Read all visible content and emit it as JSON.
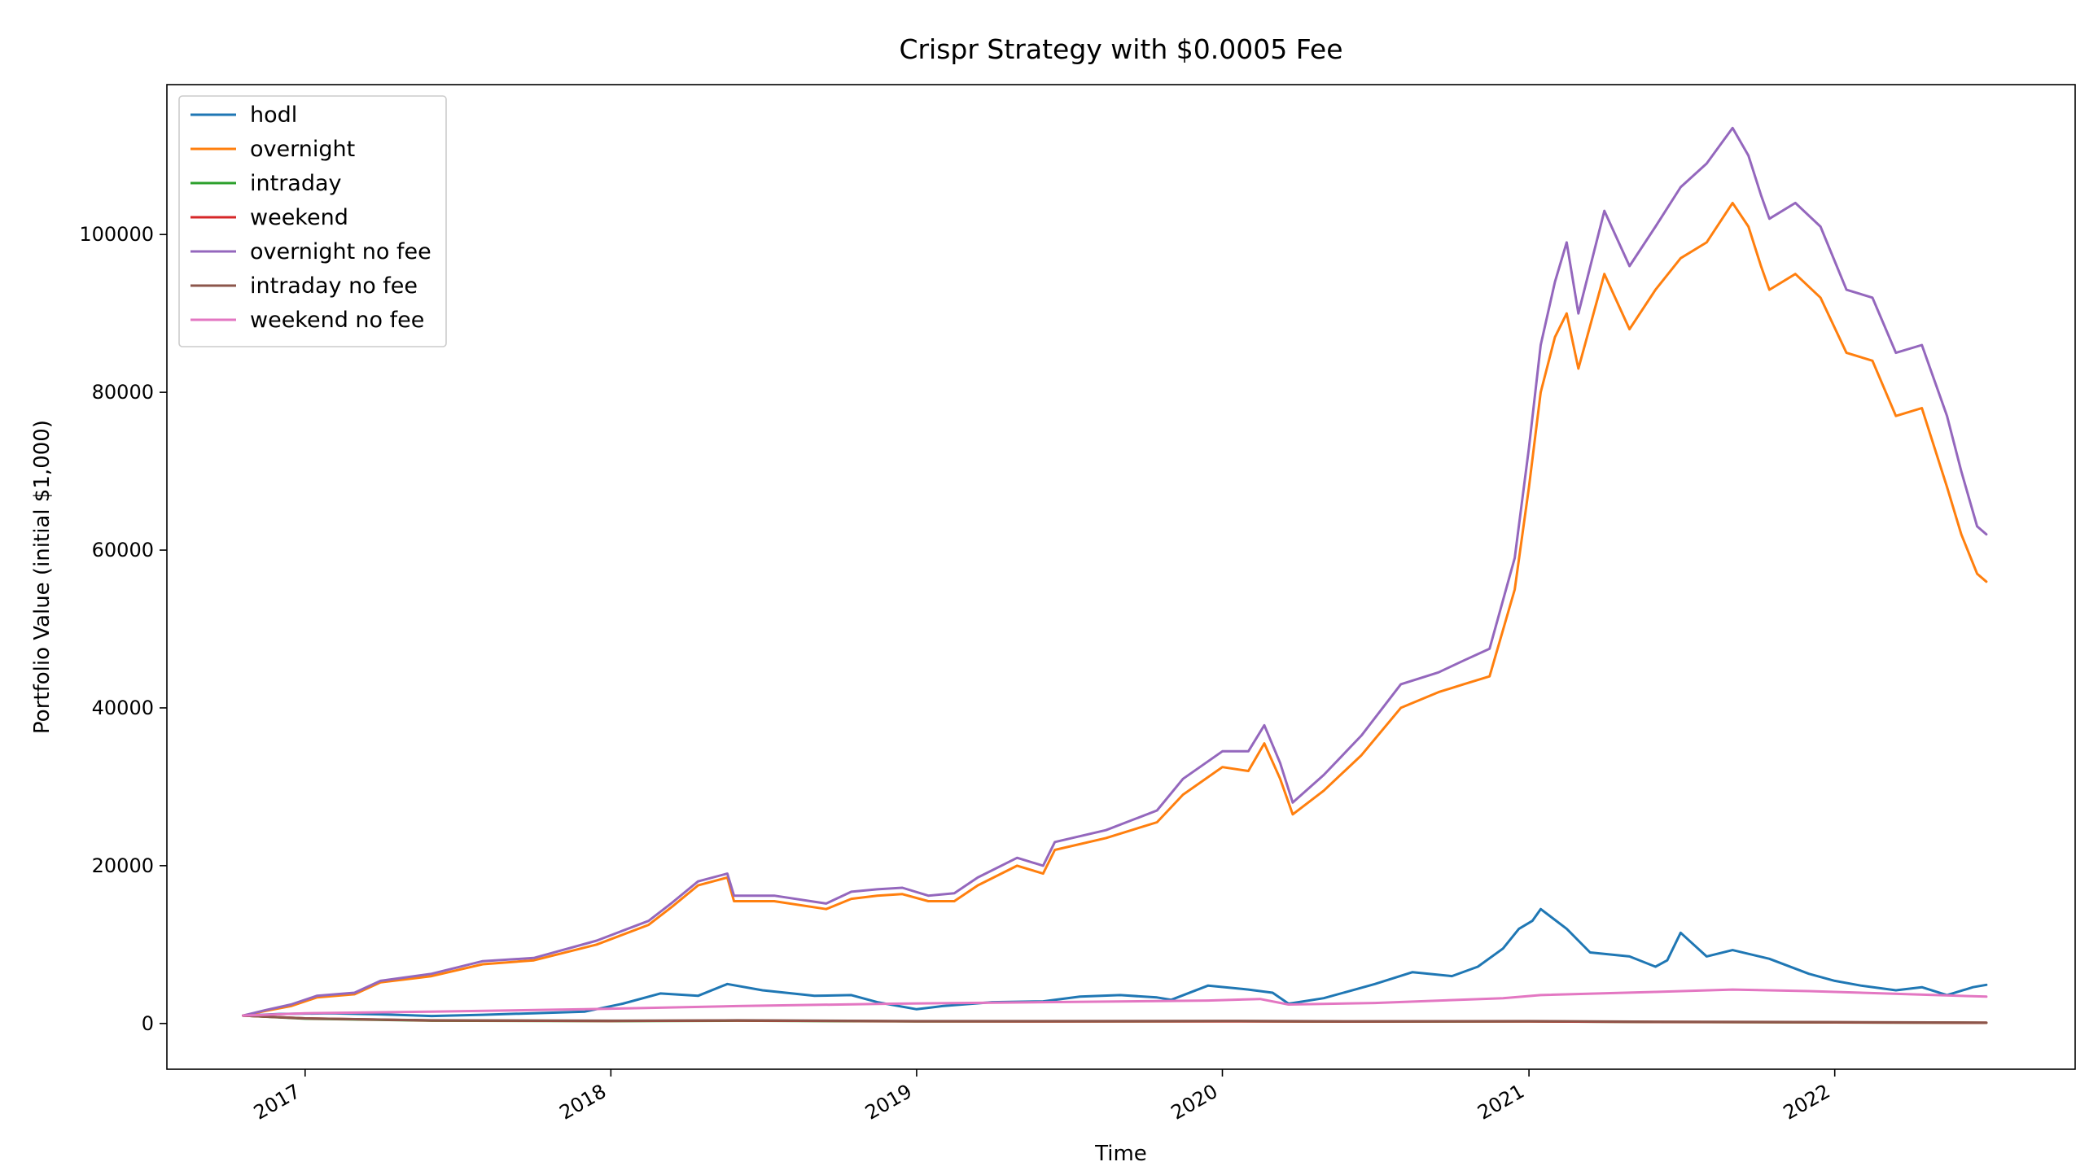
{
  "chart_data": {
    "type": "line",
    "title": "Crispr Strategy with $0.0005 Fee",
    "xlabel": "Time",
    "ylabel": "Portfolio Value (initial $1,000)",
    "x_ticks": [
      "2017",
      "2018",
      "2019",
      "2020",
      "2021",
      "2022"
    ],
    "y_ticks": [
      0,
      20000,
      40000,
      60000,
      80000,
      100000
    ],
    "xlim": [
      "2016-07-20",
      "2022-10-15"
    ],
    "ylim": [
      -5800,
      119000
    ],
    "grid": false,
    "legend_position": "top-left",
    "series": [
      {
        "name": "hodl",
        "color": "#1f77b4",
        "points": [
          [
            "2016-10-19",
            1000
          ],
          [
            "2016-12-01",
            1200
          ],
          [
            "2017-02-01",
            1300
          ],
          [
            "2017-04-01",
            1150
          ],
          [
            "2017-06-01",
            950
          ],
          [
            "2017-08-01",
            1100
          ],
          [
            "2017-10-01",
            1300
          ],
          [
            "2017-12-01",
            1500
          ],
          [
            "2018-01-15",
            2500
          ],
          [
            "2018-03-01",
            3800
          ],
          [
            "2018-04-15",
            3500
          ],
          [
            "2018-05-20",
            5000
          ],
          [
            "2018-07-01",
            4200
          ],
          [
            "2018-09-01",
            3500
          ],
          [
            "2018-10-15",
            3600
          ],
          [
            "2018-11-15",
            2700
          ],
          [
            "2019-01-01",
            1800
          ],
          [
            "2019-02-01",
            2200
          ],
          [
            "2019-04-01",
            2700
          ],
          [
            "2019-06-01",
            2800
          ],
          [
            "2019-07-15",
            3400
          ],
          [
            "2019-09-01",
            3600
          ],
          [
            "2019-10-15",
            3300
          ],
          [
            "2019-11-01",
            3000
          ],
          [
            "2019-12-15",
            4800
          ],
          [
            "2020-02-01",
            4300
          ],
          [
            "2020-03-01",
            3900
          ],
          [
            "2020-03-20",
            2500
          ],
          [
            "2020-05-01",
            3200
          ],
          [
            "2020-07-01",
            5000
          ],
          [
            "2020-08-15",
            6500
          ],
          [
            "2020-10-01",
            6000
          ],
          [
            "2020-11-01",
            7200
          ],
          [
            "2020-12-01",
            9500
          ],
          [
            "2020-12-20",
            12000
          ],
          [
            "2021-01-05",
            13000
          ],
          [
            "2021-01-15",
            14500
          ],
          [
            "2021-02-15",
            12000
          ],
          [
            "2021-03-15",
            9000
          ],
          [
            "2021-05-01",
            8500
          ],
          [
            "2021-06-01",
            7200
          ],
          [
            "2021-06-15",
            8000
          ],
          [
            "2021-07-01",
            11500
          ],
          [
            "2021-08-01",
            8500
          ],
          [
            "2021-09-01",
            9300
          ],
          [
            "2021-10-15",
            8200
          ],
          [
            "2021-12-01",
            6300
          ],
          [
            "2022-01-01",
            5400
          ],
          [
            "2022-02-01",
            4800
          ],
          [
            "2022-03-15",
            4200
          ],
          [
            "2022-04-15",
            4600
          ],
          [
            "2022-05-15",
            3600
          ],
          [
            "2022-06-15",
            4600
          ],
          [
            "2022-07-01",
            4900
          ]
        ]
      },
      {
        "name": "overnight",
        "color": "#ff7f0e",
        "points": [
          [
            "2016-10-19",
            1000
          ],
          [
            "2016-11-15",
            1600
          ],
          [
            "2016-12-15",
            2200
          ],
          [
            "2017-01-15",
            3300
          ],
          [
            "2017-03-01",
            3700
          ],
          [
            "2017-04-01",
            5200
          ],
          [
            "2017-06-01",
            6000
          ],
          [
            "2017-08-01",
            7500
          ],
          [
            "2017-10-01",
            8000
          ],
          [
            "2017-12-15",
            10000
          ],
          [
            "2018-02-15",
            12500
          ],
          [
            "2018-03-15",
            14800
          ],
          [
            "2018-04-15",
            17500
          ],
          [
            "2018-05-20",
            18500
          ],
          [
            "2018-05-28",
            15500
          ],
          [
            "2018-07-15",
            15500
          ],
          [
            "2018-09-15",
            14500
          ],
          [
            "2018-10-15",
            15800
          ],
          [
            "2018-11-15",
            16200
          ],
          [
            "2018-12-15",
            16400
          ],
          [
            "2019-01-15",
            15500
          ],
          [
            "2019-02-15",
            15500
          ],
          [
            "2019-03-15",
            17500
          ],
          [
            "2019-05-01",
            20000
          ],
          [
            "2019-06-01",
            19000
          ],
          [
            "2019-06-15",
            22000
          ],
          [
            "2019-08-15",
            23500
          ],
          [
            "2019-10-15",
            25500
          ],
          [
            "2019-11-15",
            29000
          ],
          [
            "2020-01-01",
            32500
          ],
          [
            "2020-02-01",
            32000
          ],
          [
            "2020-02-20",
            35500
          ],
          [
            "2020-03-10",
            31000
          ],
          [
            "2020-03-25",
            26500
          ],
          [
            "2020-05-01",
            29500
          ],
          [
            "2020-06-15",
            34000
          ],
          [
            "2020-08-01",
            40000
          ],
          [
            "2020-09-15",
            42000
          ],
          [
            "2020-10-15",
            43000
          ],
          [
            "2020-11-15",
            44000
          ],
          [
            "2020-12-15",
            55000
          ],
          [
            "2021-01-01",
            68000
          ],
          [
            "2021-01-15",
            80000
          ],
          [
            "2021-02-01",
            87000
          ],
          [
            "2021-02-15",
            90000
          ],
          [
            "2021-03-01",
            83000
          ],
          [
            "2021-04-01",
            95000
          ],
          [
            "2021-05-01",
            88000
          ],
          [
            "2021-06-01",
            93000
          ],
          [
            "2021-07-01",
            97000
          ],
          [
            "2021-08-01",
            99000
          ],
          [
            "2021-09-01",
            104000
          ],
          [
            "2021-09-20",
            101000
          ],
          [
            "2021-10-05",
            96000
          ],
          [
            "2021-10-15",
            93000
          ],
          [
            "2021-11-15",
            95000
          ],
          [
            "2021-12-15",
            92000
          ],
          [
            "2022-01-15",
            85000
          ],
          [
            "2022-02-15",
            84000
          ],
          [
            "2022-03-15",
            77000
          ],
          [
            "2022-04-15",
            78000
          ],
          [
            "2022-05-15",
            68000
          ],
          [
            "2022-06-01",
            62000
          ],
          [
            "2022-06-20",
            57000
          ],
          [
            "2022-07-01",
            56000
          ]
        ]
      },
      {
        "name": "intraday",
        "color": "#2ca02c",
        "points": [
          [
            "2016-10-19",
            1000
          ],
          [
            "2017-01-01",
            600
          ],
          [
            "2017-06-01",
            350
          ],
          [
            "2018-01-01",
            300
          ],
          [
            "2018-06-01",
            350
          ],
          [
            "2019-01-01",
            250
          ],
          [
            "2019-06-01",
            250
          ],
          [
            "2020-01-01",
            270
          ],
          [
            "2020-06-01",
            230
          ],
          [
            "2021-01-01",
            250
          ],
          [
            "2021-06-01",
            180
          ],
          [
            "2022-01-01",
            130
          ],
          [
            "2022-07-01",
            80
          ]
        ]
      },
      {
        "name": "weekend",
        "color": "#d62728",
        "points": [
          [
            "2016-10-19",
            1000
          ],
          [
            "2017-01-01",
            650
          ],
          [
            "2017-06-01",
            380
          ],
          [
            "2018-01-01",
            320
          ],
          [
            "2018-06-01",
            370
          ],
          [
            "2019-01-01",
            270
          ],
          [
            "2019-06-01",
            260
          ],
          [
            "2020-01-01",
            280
          ],
          [
            "2020-06-01",
            240
          ],
          [
            "2021-01-01",
            260
          ],
          [
            "2021-06-01",
            190
          ],
          [
            "2022-01-01",
            140
          ],
          [
            "2022-07-01",
            90
          ]
        ]
      },
      {
        "name": "overnight no fee",
        "color": "#9467bd",
        "points": [
          [
            "2016-10-19",
            1000
          ],
          [
            "2016-11-15",
            1700
          ],
          [
            "2016-12-15",
            2400
          ],
          [
            "2017-01-15",
            3500
          ],
          [
            "2017-03-01",
            3900
          ],
          [
            "2017-04-01",
            5400
          ],
          [
            "2017-06-01",
            6300
          ],
          [
            "2017-08-01",
            7900
          ],
          [
            "2017-10-01",
            8300
          ],
          [
            "2017-12-15",
            10500
          ],
          [
            "2018-02-15",
            13000
          ],
          [
            "2018-03-15",
            15300
          ],
          [
            "2018-04-15",
            18000
          ],
          [
            "2018-05-20",
            19000
          ],
          [
            "2018-05-28",
            16200
          ],
          [
            "2018-07-15",
            16200
          ],
          [
            "2018-09-15",
            15200
          ],
          [
            "2018-10-15",
            16700
          ],
          [
            "2018-11-15",
            17000
          ],
          [
            "2018-12-15",
            17200
          ],
          [
            "2019-01-15",
            16200
          ],
          [
            "2019-02-15",
            16500
          ],
          [
            "2019-03-15",
            18500
          ],
          [
            "2019-05-01",
            21000
          ],
          [
            "2019-06-01",
            20000
          ],
          [
            "2019-06-15",
            23000
          ],
          [
            "2019-08-15",
            24500
          ],
          [
            "2019-10-15",
            27000
          ],
          [
            "2019-11-15",
            31000
          ],
          [
            "2020-01-01",
            34500
          ],
          [
            "2020-02-01",
            34500
          ],
          [
            "2020-02-20",
            37800
          ],
          [
            "2020-03-10",
            33000
          ],
          [
            "2020-03-25",
            28000
          ],
          [
            "2020-05-01",
            31500
          ],
          [
            "2020-06-15",
            36500
          ],
          [
            "2020-08-01",
            43000
          ],
          [
            "2020-09-15",
            44500
          ],
          [
            "2020-10-15",
            46000
          ],
          [
            "2020-11-15",
            47500
          ],
          [
            "2020-12-15",
            59000
          ],
          [
            "2021-01-01",
            73000
          ],
          [
            "2021-01-15",
            86000
          ],
          [
            "2021-02-01",
            94000
          ],
          [
            "2021-02-15",
            99000
          ],
          [
            "2021-03-01",
            90000
          ],
          [
            "2021-04-01",
            103000
          ],
          [
            "2021-05-01",
            96000
          ],
          [
            "2021-06-01",
            101000
          ],
          [
            "2021-07-01",
            106000
          ],
          [
            "2021-08-01",
            109000
          ],
          [
            "2021-09-01",
            113500
          ],
          [
            "2021-09-20",
            110000
          ],
          [
            "2021-10-05",
            105000
          ],
          [
            "2021-10-15",
            102000
          ],
          [
            "2021-11-15",
            104000
          ],
          [
            "2021-12-15",
            101000
          ],
          [
            "2022-01-15",
            93000
          ],
          [
            "2022-02-15",
            92000
          ],
          [
            "2022-03-15",
            85000
          ],
          [
            "2022-04-15",
            86000
          ],
          [
            "2022-05-15",
            77000
          ],
          [
            "2022-06-01",
            70000
          ],
          [
            "2022-06-20",
            63000
          ],
          [
            "2022-07-01",
            62000
          ]
        ]
      },
      {
        "name": "intraday no fee",
        "color": "#8c564b",
        "points": [
          [
            "2016-10-19",
            1000
          ],
          [
            "2017-01-01",
            650
          ],
          [
            "2017-06-01",
            400
          ],
          [
            "2018-01-01",
            350
          ],
          [
            "2018-06-01",
            400
          ],
          [
            "2019-01-01",
            300
          ],
          [
            "2019-06-01",
            300
          ],
          [
            "2020-01-01",
            330
          ],
          [
            "2020-06-01",
            280
          ],
          [
            "2021-01-01",
            300
          ],
          [
            "2021-06-01",
            220
          ],
          [
            "2022-01-01",
            170
          ],
          [
            "2022-07-01",
            110
          ]
        ]
      },
      {
        "name": "weekend no fee",
        "color": "#e377c2",
        "points": [
          [
            "2016-10-19",
            1000
          ],
          [
            "2017-01-01",
            1300
          ],
          [
            "2017-06-01",
            1500
          ],
          [
            "2017-12-01",
            1800
          ],
          [
            "2018-06-01",
            2200
          ],
          [
            "2018-12-01",
            2500
          ],
          [
            "2019-06-01",
            2700
          ],
          [
            "2019-12-15",
            2900
          ],
          [
            "2020-02-15",
            3100
          ],
          [
            "2020-03-20",
            2400
          ],
          [
            "2020-07-01",
            2600
          ],
          [
            "2020-12-01",
            3200
          ],
          [
            "2021-01-15",
            3600
          ],
          [
            "2021-06-01",
            4000
          ],
          [
            "2021-09-01",
            4300
          ],
          [
            "2021-12-01",
            4100
          ],
          [
            "2022-03-01",
            3800
          ],
          [
            "2022-07-01",
            3400
          ]
        ]
      }
    ]
  }
}
